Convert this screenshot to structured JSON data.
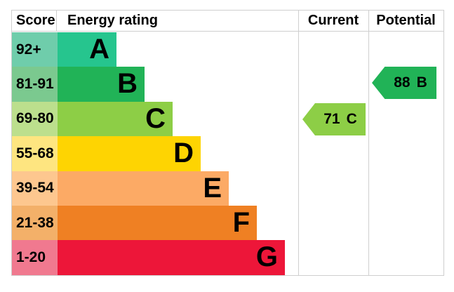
{
  "header": {
    "score": "Score",
    "energy_rating": "Energy rating",
    "current": "Current",
    "potential": "Potential"
  },
  "bands": [
    {
      "band": "A",
      "score_range": "92+",
      "bar_color": "#26c58e",
      "score_color": "#6fcdab"
    },
    {
      "band": "B",
      "score_range": "81-91",
      "bar_color": "#21b357",
      "score_color": "#7bc98f"
    },
    {
      "band": "C",
      "score_range": "69-80",
      "bar_color": "#8dce46",
      "score_color": "#bcdf8d"
    },
    {
      "band": "D",
      "score_range": "55-68",
      "bar_color": "#fed402",
      "score_color": "#fee580"
    },
    {
      "band": "E",
      "score_range": "39-54",
      "bar_color": "#fcaa65",
      "score_color": "#fdc78f"
    },
    {
      "band": "F",
      "score_range": "21-38",
      "bar_color": "#ef8023",
      "score_color": "#f3b069"
    },
    {
      "band": "G",
      "score_range": "1-20",
      "bar_color": "#ed1639",
      "score_color": "#f0798f"
    }
  ],
  "current": {
    "value": "71",
    "band": "C",
    "color": "#8dce46"
  },
  "potential": {
    "value": "88",
    "band": "B",
    "color": "#21b357"
  },
  "chart_data": {
    "type": "bar",
    "title": "",
    "columns": [
      "Score",
      "Energy rating",
      "Current",
      "Potential"
    ],
    "categories": [
      "A",
      "B",
      "C",
      "D",
      "E",
      "F",
      "G"
    ],
    "score_ranges": [
      "92+",
      "81-91",
      "69-80",
      "55-68",
      "39-54",
      "21-38",
      "1-20"
    ],
    "bar_colors": [
      "#26c58e",
      "#21b357",
      "#8dce46",
      "#fed402",
      "#fcaa65",
      "#ef8023",
      "#ed1639"
    ],
    "score_cell_colors": [
      "#6fcdab",
      "#7bc98f",
      "#bcdf8d",
      "#fee580",
      "#fdc78f",
      "#f3b069",
      "#f0798f"
    ],
    "bar_lengths_relative": [
      1,
      2,
      3,
      4,
      5,
      6,
      7
    ],
    "current": {
      "value": 71,
      "band": "C"
    },
    "potential": {
      "value": 88,
      "band": "B"
    },
    "legend_position": "none",
    "grid": false
  }
}
